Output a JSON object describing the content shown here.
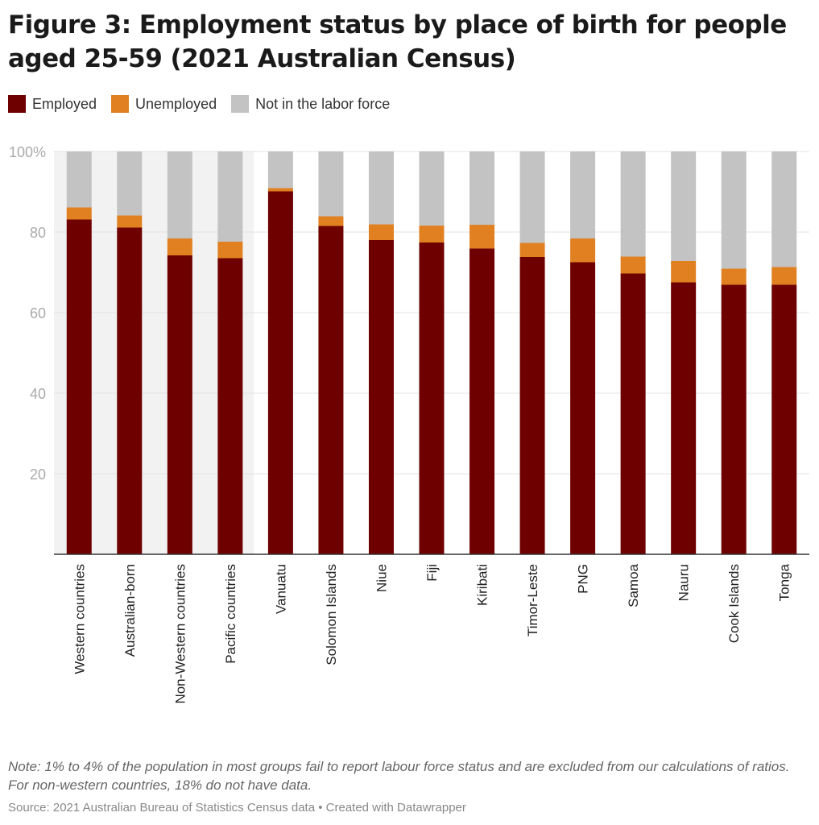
{
  "title": "Figure 3: Employment status by place of birth for people aged 25-59 (2021 Australian Census)",
  "note": "Note: 1% to 4% of the population in most groups fail to report labour force status and are excluded from our calculations of ratios. For non-western countries, 18% do not have data.",
  "source": "Source: 2021 Australian Bureau of Statistics Census data • Created with Datawrapper",
  "chart_data": {
    "type": "bar",
    "stacked": true,
    "categories": [
      "Western countries",
      "Australian-born",
      "Non-Western countries",
      "Pacific countries",
      "Vanuatu",
      "Solomon Islands",
      "Niue",
      "Fiji",
      "Kiribati",
      "Timor-Leste",
      "PNG",
      "Samoa",
      "Nauru",
      "Cook Islands",
      "Tonga"
    ],
    "highlighted_categories": [
      "Western countries",
      "Australian-born",
      "Non-Western countries",
      "Pacific countries"
    ],
    "series": [
      {
        "name": "Employed",
        "color": "#6e0000",
        "values": [
          83.1,
          81.1,
          74.2,
          73.5,
          90.1,
          81.5,
          78.0,
          77.4,
          75.9,
          73.8,
          72.5,
          69.7,
          67.5,
          66.9,
          66.9
        ]
      },
      {
        "name": "Unemployed",
        "color": "#e08020",
        "values": [
          3.0,
          3.0,
          4.2,
          4.1,
          0.8,
          2.4,
          3.9,
          4.2,
          5.9,
          3.5,
          5.9,
          4.2,
          5.3,
          4.0,
          4.4
        ]
      },
      {
        "name": "Not in the labor force",
        "color": "#c3c3c3",
        "values": [
          13.9,
          15.9,
          21.6,
          22.4,
          9.1,
          16.1,
          18.1,
          18.4,
          18.2,
          22.7,
          21.6,
          26.1,
          27.2,
          29.1,
          28.7
        ]
      }
    ],
    "yticks": [
      "20",
      "40",
      "60",
      "80",
      "100%"
    ],
    "ytick_values": [
      20,
      40,
      60,
      80,
      100
    ],
    "ylim": [
      0,
      100
    ],
    "grid": true,
    "legend_position": "top-left"
  }
}
